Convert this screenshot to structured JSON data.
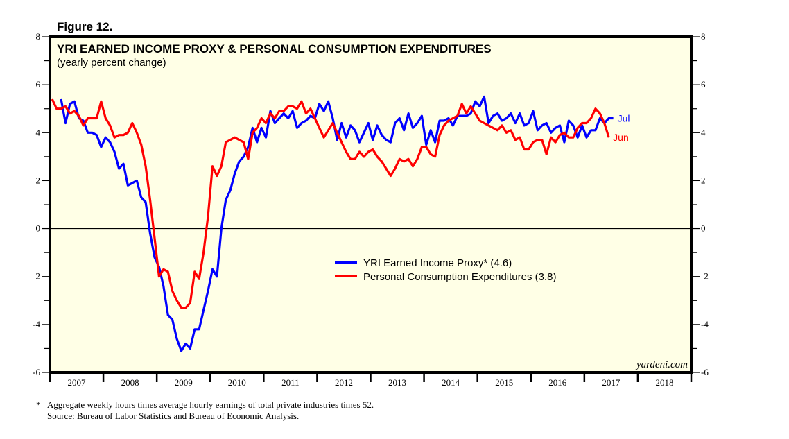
{
  "figure_label": "Figure 12.",
  "watermark": "yardeni.com",
  "footnotes": {
    "asterisk": "*",
    "note": "Aggregate weekly hours times average hourly earnings of total private industries times 52.",
    "source": "Source: Bureau of Labor Statistics and Bureau of Economic Analysis."
  },
  "chart_data": {
    "type": "line",
    "title": "YRI EARNED INCOME PROXY & PERSONAL CONSUMPTION EXPENDITURES",
    "subtitle": "(yearly percent change)",
    "xlabel": "",
    "ylabel": "",
    "ylim": [
      -6,
      8
    ],
    "y_ticks": [
      -6,
      -4,
      -2,
      0,
      2,
      4,
      6,
      8
    ],
    "y_tick_labels": [
      "-6",
      "-4",
      "-2",
      "0",
      "2",
      "4",
      "6",
      "8"
    ],
    "y_minor_step": 1,
    "xlim": [
      "2007-01",
      "2018-12"
    ],
    "x_tick_labels": [
      "2007",
      "2008",
      "2009",
      "2010",
      "2011",
      "2012",
      "2013",
      "2014",
      "2015",
      "2016",
      "2017",
      "2018"
    ],
    "frequency": "monthly",
    "zero_line": true,
    "grid": false,
    "legend_position": "center-right",
    "series": [
      {
        "name": "YRI Earned Income Proxy* (4.6)",
        "color": "#0000ff",
        "start": "2007-03",
        "end_label": "Jul",
        "values": [
          5.4,
          4.4,
          5.2,
          5.3,
          4.6,
          4.5,
          4.0,
          4.0,
          3.9,
          3.4,
          3.8,
          3.6,
          3.2,
          2.5,
          2.7,
          1.8,
          1.9,
          2.0,
          1.3,
          1.1,
          -0.2,
          -1.2,
          -1.6,
          -2.4,
          -3.6,
          -3.8,
          -4.6,
          -5.1,
          -4.8,
          -5.0,
          -4.2,
          -4.2,
          -3.4,
          -2.6,
          -1.7,
          -2.0,
          0.0,
          1.2,
          1.6,
          2.3,
          2.8,
          3.0,
          3.4,
          4.2,
          3.6,
          4.2,
          3.8,
          4.9,
          4.4,
          4.6,
          4.8,
          4.6,
          4.9,
          4.2,
          4.4,
          4.5,
          4.7,
          4.6,
          5.2,
          4.9,
          5.3,
          4.6,
          3.7,
          4.4,
          3.8,
          4.3,
          4.1,
          3.6,
          4.0,
          4.4,
          3.7,
          4.3,
          3.9,
          3.7,
          3.6,
          4.4,
          4.6,
          4.1,
          4.8,
          4.2,
          4.4,
          4.7,
          3.5,
          4.1,
          3.6,
          4.5,
          4.5,
          4.6,
          4.3,
          4.7,
          4.7,
          4.7,
          4.8,
          5.3,
          5.1,
          5.5,
          4.4,
          4.7,
          4.8,
          4.5,
          4.6,
          4.8,
          4.4,
          4.8,
          4.3,
          4.4,
          4.9,
          4.1,
          4.3,
          4.4,
          4.0,
          4.2,
          4.3,
          3.6,
          4.5,
          4.3,
          3.8,
          4.3,
          3.8,
          4.1,
          4.1,
          4.6,
          4.4,
          4.6,
          4.6
        ]
      },
      {
        "name": "Personal Consumption Expenditures (3.8)",
        "color": "#ff0000",
        "start": "2007-01",
        "end_label": "Jun",
        "values": [
          5.4,
          5.0,
          5.0,
          5.1,
          4.8,
          4.9,
          4.7,
          4.3,
          4.6,
          4.6,
          4.6,
          5.3,
          4.6,
          4.3,
          3.8,
          3.9,
          3.9,
          4.0,
          4.4,
          4.0,
          3.5,
          2.6,
          1.2,
          -0.4,
          -2.0,
          -1.7,
          -1.8,
          -2.6,
          -3.0,
          -3.3,
          -3.3,
          -3.1,
          -1.8,
          -2.1,
          -1.0,
          0.5,
          2.6,
          2.2,
          2.6,
          3.6,
          3.7,
          3.8,
          3.7,
          3.6,
          2.9,
          4.0,
          4.2,
          4.6,
          4.4,
          4.8,
          4.6,
          4.9,
          4.9,
          5.1,
          5.1,
          5.0,
          5.3,
          4.8,
          5.0,
          4.6,
          4.2,
          3.8,
          4.1,
          4.4,
          4.0,
          3.6,
          3.2,
          2.9,
          2.9,
          3.2,
          3.0,
          3.2,
          3.3,
          3.0,
          2.8,
          2.5,
          2.2,
          2.5,
          2.9,
          2.8,
          2.9,
          2.6,
          2.9,
          3.4,
          3.4,
          3.1,
          3.0,
          3.9,
          4.3,
          4.5,
          4.6,
          4.7,
          5.2,
          4.8,
          5.1,
          4.8,
          4.5,
          4.4,
          4.3,
          4.2,
          4.1,
          4.3,
          4.0,
          4.1,
          3.7,
          3.8,
          3.3,
          3.3,
          3.6,
          3.7,
          3.7,
          3.1,
          3.8,
          3.6,
          3.9,
          4.0,
          3.8,
          3.8,
          4.2,
          4.4,
          4.4,
          4.6,
          5.0,
          4.8,
          4.4,
          3.8
        ]
      }
    ]
  }
}
